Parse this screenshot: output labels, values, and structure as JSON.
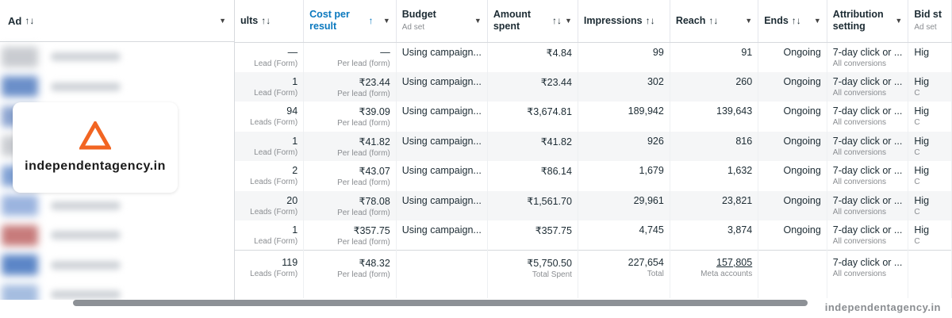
{
  "ad_column": {
    "label": "Ad",
    "sort_icon": "↑↓"
  },
  "brand_card": {
    "text": "independentagency.in"
  },
  "columns": [
    {
      "label": "ults",
      "sort": "↑↓"
    },
    {
      "label": "Cost per result",
      "sort": "↑"
    },
    {
      "label": "Budget",
      "sub": "Ad set"
    },
    {
      "label": "Amount spent",
      "sort": "↑↓"
    },
    {
      "label": "Impressions",
      "sort": "↑↓"
    },
    {
      "label": "Reach",
      "sort": "↑↓"
    },
    {
      "label": "Ends",
      "sort": "↑↓"
    },
    {
      "label": "Attribution setting"
    },
    {
      "label": "Bid st",
      "sub": "Ad set"
    }
  ],
  "rows": [
    {
      "results": "—",
      "results_sub": "Lead (Form)",
      "cpr": "—",
      "cpr_sub": "Per lead (form)",
      "budget": "Using campaign...",
      "spent": "₹4.84",
      "impressions": "99",
      "reach": "91",
      "ends": "Ongoing",
      "attr": "7-day click or ...",
      "attr_sub": "All conversions",
      "bid": "Hig",
      "bid_sub": ""
    },
    {
      "results": "1",
      "results_sub": "Lead (Form)",
      "cpr": "₹23.44",
      "cpr_sub": "Per lead (form)",
      "budget": "Using campaign...",
      "spent": "₹23.44",
      "impressions": "302",
      "reach": "260",
      "ends": "Ongoing",
      "attr": "7-day click or ...",
      "attr_sub": "All conversions",
      "bid": "Hig",
      "bid_sub": "C"
    },
    {
      "results": "94",
      "results_sub": "Leads (Form)",
      "cpr": "₹39.09",
      "cpr_sub": "Per lead (form)",
      "budget": "Using campaign...",
      "spent": "₹3,674.81",
      "impressions": "189,942",
      "reach": "139,643",
      "ends": "Ongoing",
      "attr": "7-day click or ...",
      "attr_sub": "All conversions",
      "bid": "Hig",
      "bid_sub": "C"
    },
    {
      "results": "1",
      "results_sub": "Lead (Form)",
      "cpr": "₹41.82",
      "cpr_sub": "Per lead (form)",
      "budget": "Using campaign...",
      "spent": "₹41.82",
      "impressions": "926",
      "reach": "816",
      "ends": "Ongoing",
      "attr": "7-day click or ...",
      "attr_sub": "All conversions",
      "bid": "Hig",
      "bid_sub": "C"
    },
    {
      "results": "2",
      "results_sub": "Leads (Form)",
      "cpr": "₹43.07",
      "cpr_sub": "Per lead (form)",
      "budget": "Using campaign...",
      "spent": "₹86.14",
      "impressions": "1,679",
      "reach": "1,632",
      "ends": "Ongoing",
      "attr": "7-day click or ...",
      "attr_sub": "All conversions",
      "bid": "Hig",
      "bid_sub": "C"
    },
    {
      "results": "20",
      "results_sub": "Leads (Form)",
      "cpr": "₹78.08",
      "cpr_sub": "Per lead (form)",
      "budget": "Using campaign...",
      "spent": "₹1,561.70",
      "impressions": "29,961",
      "reach": "23,821",
      "ends": "Ongoing",
      "attr": "7-day click or ...",
      "attr_sub": "All conversions",
      "bid": "Hig",
      "bid_sub": "C"
    },
    {
      "results": "1",
      "results_sub": "Lead (Form)",
      "cpr": "₹357.75",
      "cpr_sub": "Per lead (form)",
      "budget": "Using campaign...",
      "spent": "₹357.75",
      "impressions": "4,745",
      "reach": "3,874",
      "ends": "Ongoing",
      "attr": "7-day click or ...",
      "attr_sub": "All conversions",
      "bid": "Hig",
      "bid_sub": "C"
    }
  ],
  "totals": {
    "results": "119",
    "results_sub": "Leads (Form)",
    "cpr": "₹48.32",
    "cpr_sub": "Per lead (form)",
    "spent": "₹5,750.50",
    "spent_sub": "Total Spent",
    "impressions": "227,654",
    "impressions_sub": "Total",
    "reach": "157,805",
    "reach_sub": "Meta accounts",
    "attr": "7-day click or ...",
    "attr_sub": "All conversions"
  },
  "watermark": "independentagency.in",
  "colors": {
    "accent": "#0a78be",
    "brand_orange": "#f26522",
    "row_shade": "#f5f6f7"
  },
  "blur_swatch_colors": [
    "#c9ccd1",
    "#6b8fc9",
    "#8aa3d0",
    "#c9ccd1",
    "#7fa0d4",
    "#9bb4df",
    "#c77b7b",
    "#5c86c7",
    "#a5bde0"
  ]
}
